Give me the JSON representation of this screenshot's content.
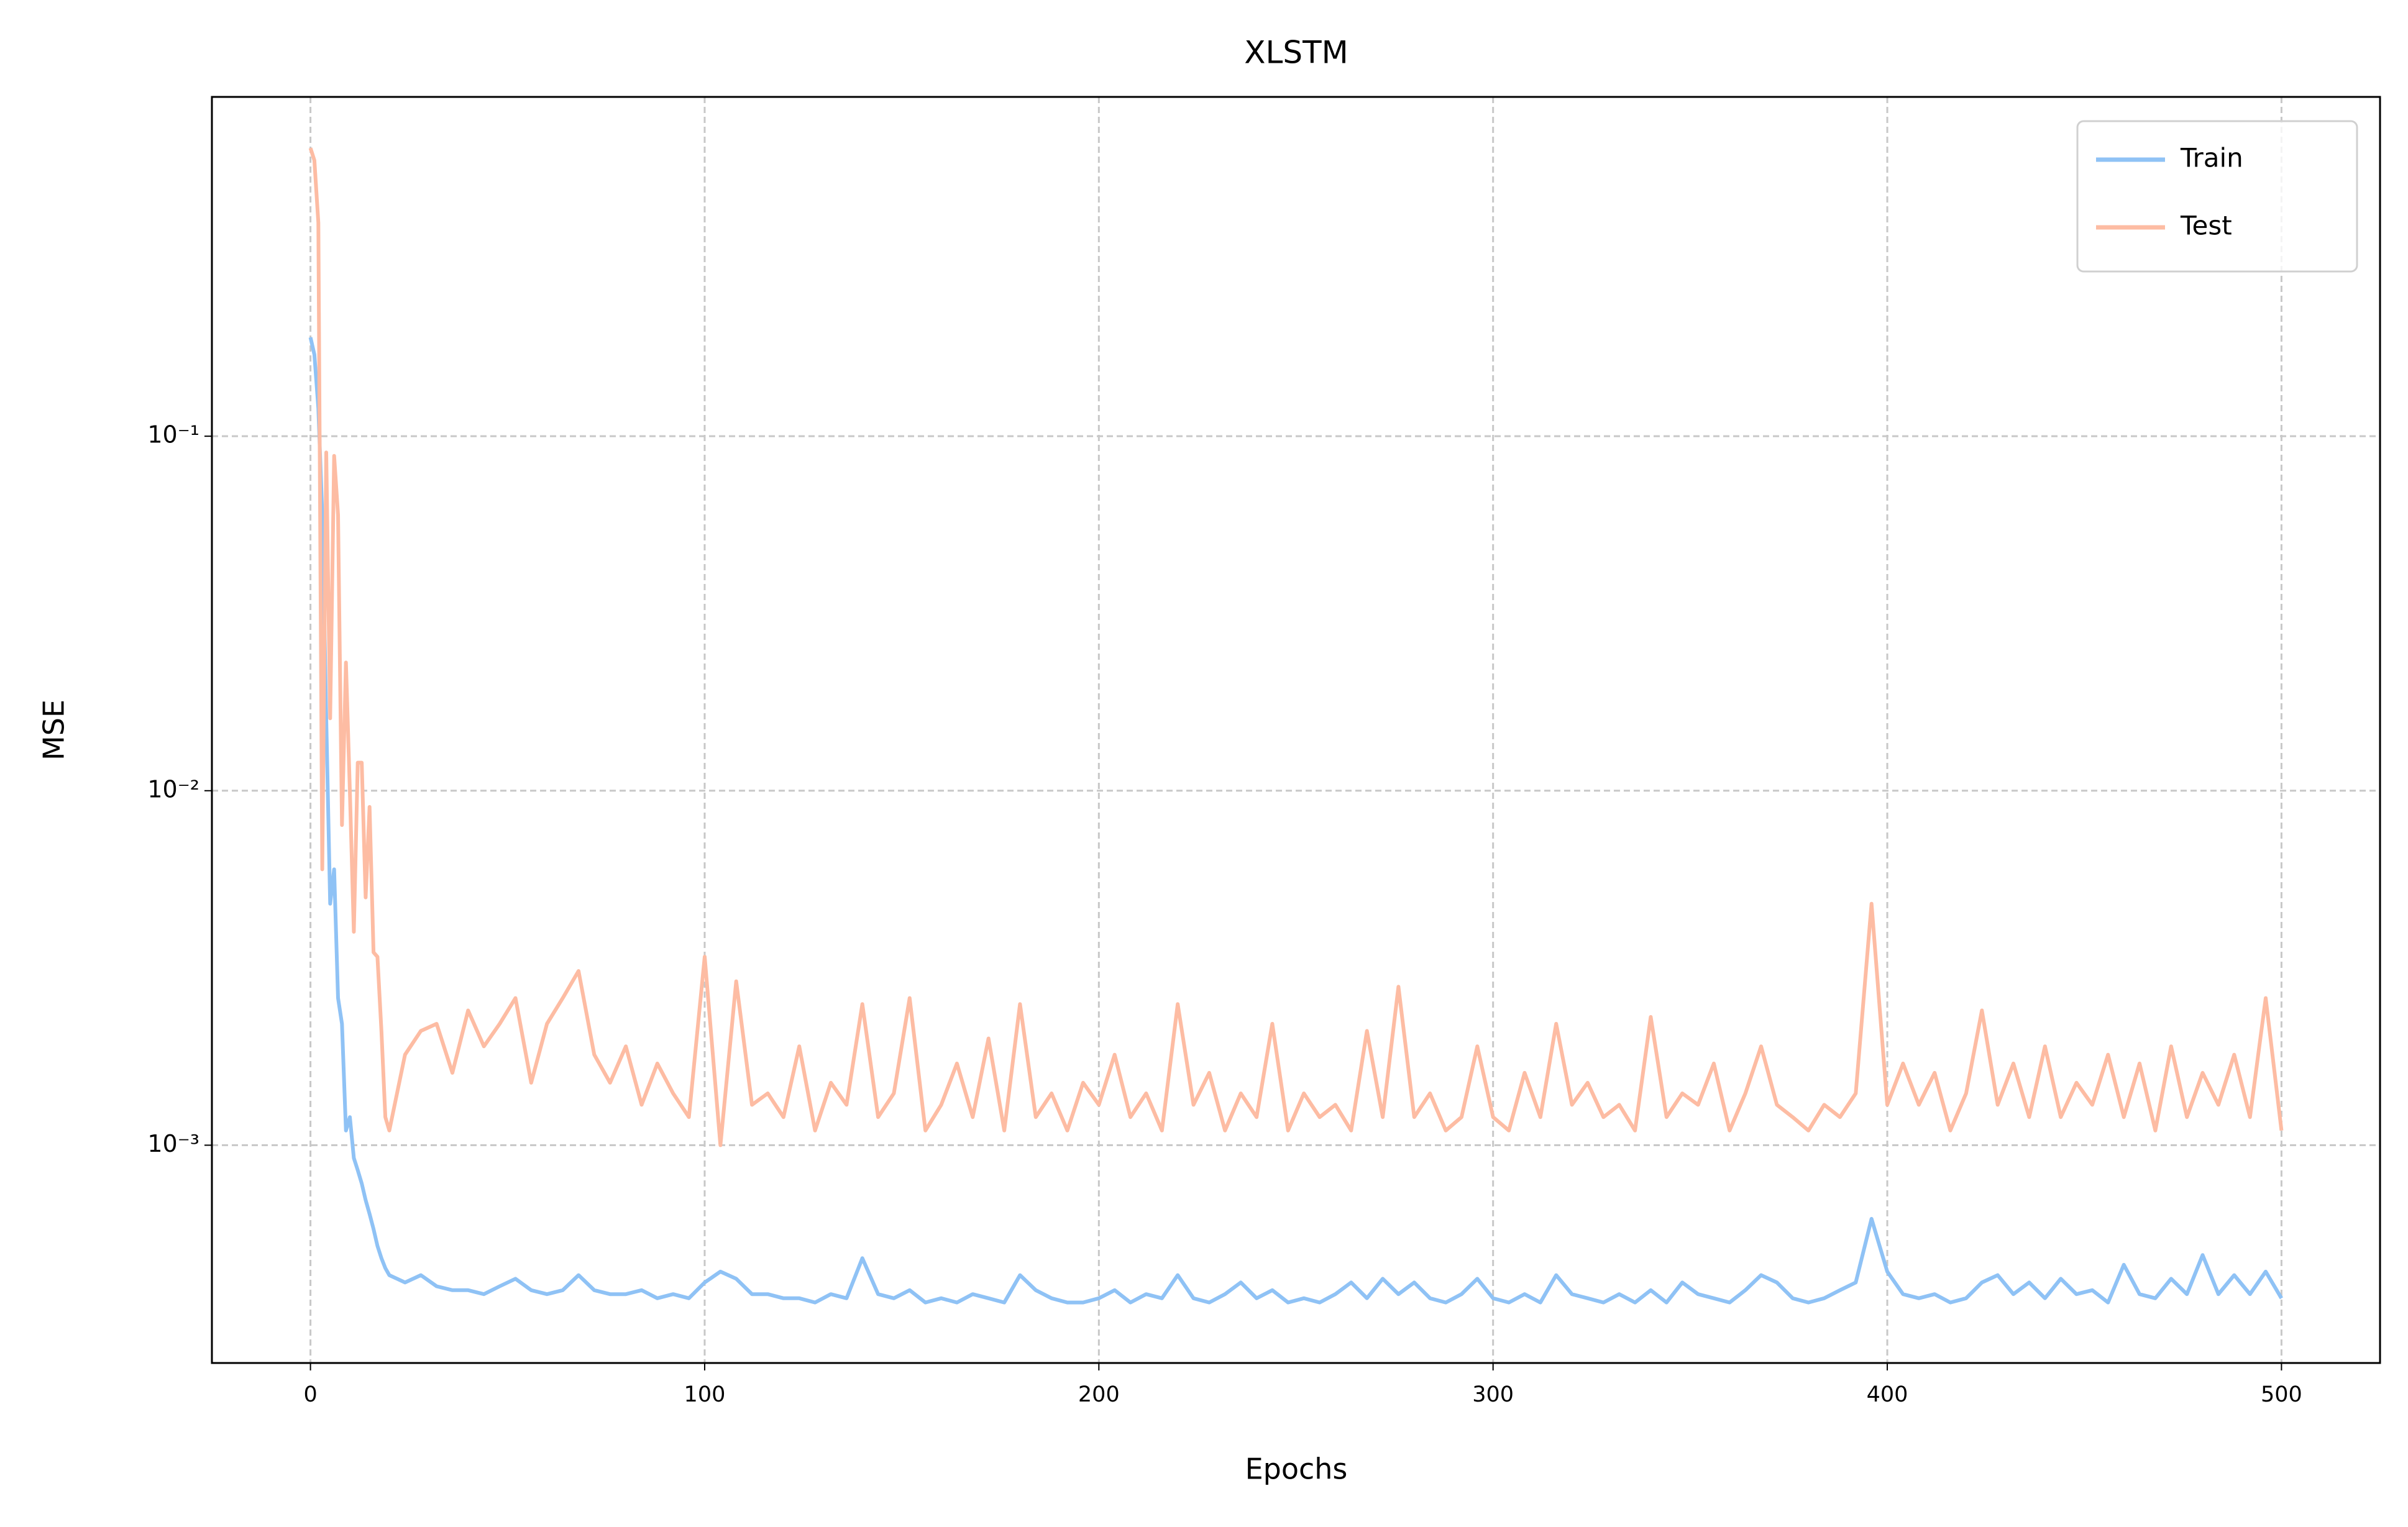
{
  "chart_data": {
    "type": "line",
    "title": "XLSTM",
    "xlabel": "Epochs",
    "ylabel": "MSE",
    "x": [
      0,
      1,
      2,
      3,
      4,
      5,
      6,
      7,
      8,
      9,
      10,
      11,
      12,
      13,
      14,
      15,
      16,
      17,
      18,
      19,
      20,
      24,
      28,
      32,
      36,
      40,
      44,
      48,
      52,
      56,
      60,
      64,
      68,
      72,
      76,
      80,
      84,
      88,
      92,
      96,
      100,
      104,
      108,
      112,
      116,
      120,
      124,
      128,
      132,
      136,
      140,
      144,
      148,
      152,
      156,
      160,
      164,
      168,
      172,
      176,
      180,
      184,
      188,
      192,
      196,
      200,
      204,
      208,
      212,
      216,
      220,
      224,
      228,
      232,
      236,
      240,
      244,
      248,
      252,
      256,
      260,
      264,
      268,
      272,
      276,
      280,
      284,
      288,
      292,
      296,
      300,
      304,
      308,
      312,
      316,
      320,
      324,
      328,
      332,
      336,
      340,
      344,
      348,
      352,
      356,
      360,
      364,
      368,
      372,
      376,
      380,
      384,
      388,
      392,
      396,
      400,
      404,
      408,
      412,
      416,
      420,
      424,
      428,
      432,
      436,
      440,
      444,
      448,
      452,
      456,
      460,
      464,
      468,
      472,
      476,
      480,
      484,
      488,
      492,
      496,
      500
    ],
    "series": [
      {
        "name": "Train",
        "color": "#8fc2f5",
        "values": [
          0.19,
          0.17,
          0.12,
          0.06,
          0.016,
          0.0048,
          0.006,
          0.0026,
          0.0022,
          0.0011,
          0.0012,
          0.00092,
          0.00085,
          0.00078,
          0.0007,
          0.00064,
          0.00058,
          0.00052,
          0.00048,
          0.00045,
          0.00043,
          0.00041,
          0.00043,
          0.0004,
          0.00039,
          0.00039,
          0.00038,
          0.0004,
          0.00042,
          0.00039,
          0.00038,
          0.00039,
          0.00043,
          0.00039,
          0.00038,
          0.00038,
          0.00039,
          0.00037,
          0.00038,
          0.00037,
          0.00041,
          0.00044,
          0.00042,
          0.00038,
          0.00038,
          0.00037,
          0.00037,
          0.00036,
          0.00038,
          0.00037,
          0.00048,
          0.00038,
          0.00037,
          0.00039,
          0.00036,
          0.00037,
          0.00036,
          0.00038,
          0.00037,
          0.00036,
          0.00043,
          0.00039,
          0.00037,
          0.00036,
          0.00036,
          0.00037,
          0.00039,
          0.00036,
          0.00038,
          0.00037,
          0.00043,
          0.00037,
          0.00036,
          0.00038,
          0.00041,
          0.00037,
          0.00039,
          0.00036,
          0.00037,
          0.00036,
          0.00038,
          0.00041,
          0.00037,
          0.00042,
          0.00038,
          0.00041,
          0.00037,
          0.00036,
          0.00038,
          0.00042,
          0.00037,
          0.00036,
          0.00038,
          0.00036,
          0.00043,
          0.00038,
          0.00037,
          0.00036,
          0.00038,
          0.00036,
          0.00039,
          0.00036,
          0.00041,
          0.00038,
          0.00037,
          0.00036,
          0.00039,
          0.00043,
          0.00041,
          0.00037,
          0.00036,
          0.00037,
          0.00039,
          0.00041,
          0.00062,
          0.00044,
          0.00038,
          0.00037,
          0.00038,
          0.00036,
          0.00037,
          0.00041,
          0.00043,
          0.00038,
          0.00041,
          0.00037,
          0.00042,
          0.00038,
          0.00039,
          0.00036,
          0.00046,
          0.00038,
          0.00037,
          0.00042,
          0.00038,
          0.00049,
          0.00038,
          0.00043,
          0.00038,
          0.00044,
          0.00037
        ]
      },
      {
        "name": "Test",
        "color": "#fdbca3",
        "values": [
          0.65,
          0.6,
          0.4,
          0.006,
          0.09,
          0.016,
          0.088,
          0.06,
          0.008,
          0.023,
          0.01,
          0.004,
          0.012,
          0.012,
          0.005,
          0.009,
          0.0035,
          0.0034,
          0.0021,
          0.0012,
          0.0011,
          0.0018,
          0.0021,
          0.0022,
          0.0016,
          0.0024,
          0.0019,
          0.0022,
          0.0026,
          0.0015,
          0.0022,
          0.0026,
          0.0031,
          0.0018,
          0.0015,
          0.0019,
          0.0013,
          0.0017,
          0.0014,
          0.0012,
          0.0034,
          0.001,
          0.0029,
          0.0013,
          0.0014,
          0.0012,
          0.0019,
          0.0011,
          0.0015,
          0.0013,
          0.0025,
          0.0012,
          0.0014,
          0.0026,
          0.0011,
          0.0013,
          0.0017,
          0.0012,
          0.002,
          0.0011,
          0.0025,
          0.0012,
          0.0014,
          0.0011,
          0.0015,
          0.0013,
          0.0018,
          0.0012,
          0.0014,
          0.0011,
          0.0025,
          0.0013,
          0.0016,
          0.0011,
          0.0014,
          0.0012,
          0.0022,
          0.0011,
          0.0014,
          0.0012,
          0.0013,
          0.0011,
          0.0021,
          0.0012,
          0.0028,
          0.0012,
          0.0014,
          0.0011,
          0.0012,
          0.0019,
          0.0012,
          0.0011,
          0.0016,
          0.0012,
          0.0022,
          0.0013,
          0.0015,
          0.0012,
          0.0013,
          0.0011,
          0.0023,
          0.0012,
          0.0014,
          0.0013,
          0.0017,
          0.0011,
          0.0014,
          0.0019,
          0.0013,
          0.0012,
          0.0011,
          0.0013,
          0.0012,
          0.0014,
          0.0048,
          0.0013,
          0.0017,
          0.0013,
          0.0016,
          0.0011,
          0.0014,
          0.0024,
          0.0013,
          0.0017,
          0.0012,
          0.0019,
          0.0012,
          0.0015,
          0.0013,
          0.0018,
          0.0012,
          0.0017,
          0.0011,
          0.0019,
          0.0012,
          0.0016,
          0.0013,
          0.0018,
          0.0012,
          0.0026,
          0.0011
        ]
      }
    ],
    "xlim": [
      -25,
      525
    ],
    "xticks": [
      0,
      100,
      200,
      300,
      400,
      500
    ],
    "ylim": [
      0.000243,
      0.906
    ],
    "log_y": true,
    "yticks": [
      {
        "value": 0.001,
        "label": "10⁻³"
      },
      {
        "value": 0.01,
        "label": "10⁻²"
      },
      {
        "value": 0.1,
        "label": "10⁻¹"
      }
    ],
    "grid": true,
    "legend": "upper right"
  }
}
